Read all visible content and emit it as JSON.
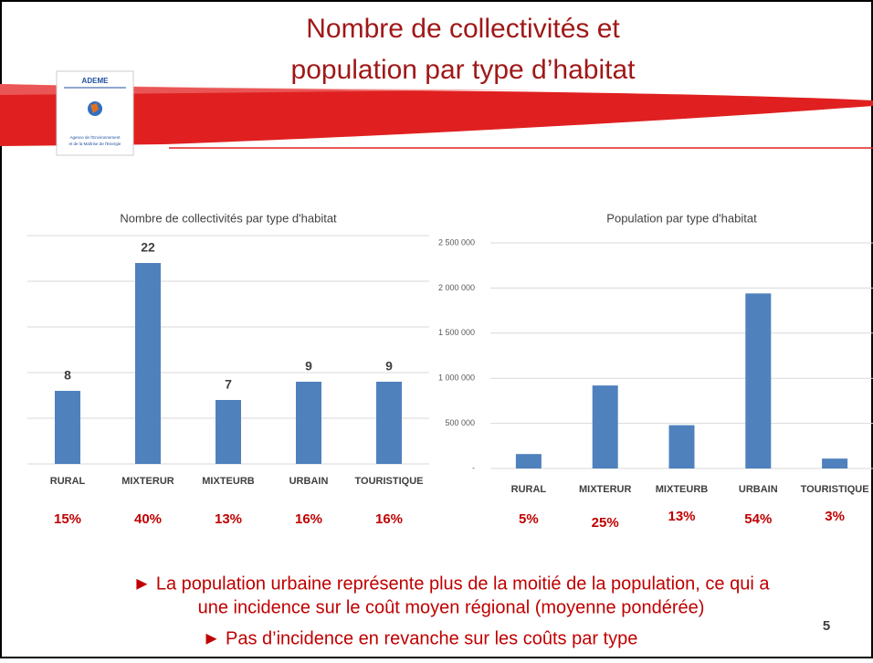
{
  "slide": {
    "title": [
      "Nombre de collectivités et",
      "population par type d’habitat"
    ],
    "bullets": [
      "► La population urbaine représente plus de la moitié de la population, ce qui a",
      "une incidence sur le coût moyen régional (moyenne pondérée)",
      "► Pas d’incidence en revanche sur les coûts par type"
    ],
    "page": "5"
  },
  "logo": {
    "name": "ADEME",
    "caption": [
      "Agence de l'Environnement",
      "et de la Maîtrise de l'Energie"
    ]
  },
  "chart_data": [
    {
      "type": "bar",
      "title": "Nombre de collectivités par type d'habitat",
      "categories": [
        "RURAL",
        "MIXTERUR",
        "MIXTEURB",
        "URBAIN",
        "TOURISTIQUE"
      ],
      "values": [
        8,
        22,
        7,
        9,
        9
      ],
      "color": "#4f81bd",
      "data_labels": true,
      "shares": [
        "15%",
        "40%",
        "13%",
        "16%",
        "16%"
      ],
      "ylim": [
        0,
        25
      ],
      "yticks": [
        0,
        5,
        10,
        15,
        20,
        25
      ],
      "grid": true
    },
    {
      "type": "bar",
      "title": "Population par type d'habitat",
      "categories": [
        "RURAL",
        "MIXTERUR",
        "MIXTEURB",
        "URBAIN",
        "TOURISTIQUE"
      ],
      "values": [
        160000,
        920000,
        480000,
        1940000,
        110000
      ],
      "color": "#4f81bd",
      "data_labels": false,
      "shares": [
        "5%",
        "25%",
        "13%",
        "54%",
        "3%"
      ],
      "ylim": [
        0,
        2500000
      ],
      "yticks": [
        {
          "value": 0,
          "label": "-"
        },
        {
          "value": 500000,
          "label": "500 000"
        },
        {
          "value": 1000000,
          "label": "1 000 000"
        },
        {
          "value": 1500000,
          "label": "1 500 000"
        },
        {
          "value": 2000000,
          "label": "2 000 000"
        },
        {
          "value": 2500000,
          "label": "2 500 000"
        }
      ],
      "grid": true
    }
  ]
}
